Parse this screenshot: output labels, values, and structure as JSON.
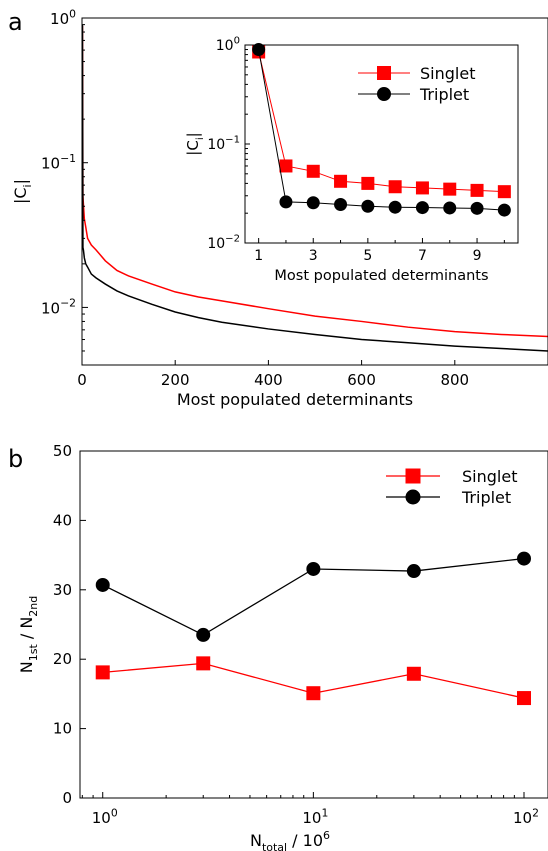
{
  "colors": {
    "singlet": "#ff0000",
    "triplet": "#000000"
  },
  "panels": {
    "a_label": "a",
    "b_label": "b"
  },
  "chart_data": [
    {
      "type": "line",
      "panel": "a",
      "xlabel": "Most populated determinants",
      "ylabel": "|C|",
      "ylabel_subscript": "i",
      "yscale": "log",
      "xlim": [
        0,
        1000
      ],
      "ylim": [
        0.004,
        1
      ],
      "xticks": [
        0,
        200,
        400,
        600,
        800
      ],
      "xtick_labels": [
        "0",
        "200",
        "400",
        "600",
        "800"
      ],
      "yticks": [
        1,
        0.1,
        0.01
      ],
      "ytick_labels": [
        {
          "base": "10",
          "exp": "0"
        },
        {
          "base": "10",
          "exp": "−1"
        },
        {
          "base": "10",
          "exp": "−2"
        }
      ],
      "series": [
        {
          "name": "Singlet",
          "color": "#ff0000",
          "x": [
            1,
            2,
            3,
            5,
            8,
            12,
            20,
            30,
            50,
            75,
            100,
            150,
            200,
            250,
            300,
            400,
            500,
            600,
            700,
            800,
            900,
            1000
          ],
          "y": [
            0.88,
            0.059,
            0.052,
            0.041,
            0.036,
            0.03,
            0.027,
            0.025,
            0.021,
            0.018,
            0.0165,
            0.0145,
            0.0128,
            0.0118,
            0.0111,
            0.0098,
            0.0087,
            0.008,
            0.0073,
            0.0068,
            0.0065,
            0.0063
          ]
        },
        {
          "name": "Triplet",
          "color": "#000000",
          "x": [
            1,
            2,
            3,
            5,
            8,
            12,
            20,
            30,
            50,
            75,
            100,
            150,
            200,
            250,
            300,
            400,
            500,
            600,
            700,
            800,
            900,
            1000
          ],
          "y": [
            0.9,
            0.026,
            0.025,
            0.022,
            0.02,
            0.019,
            0.017,
            0.016,
            0.0145,
            0.013,
            0.012,
            0.0105,
            0.0093,
            0.0085,
            0.0079,
            0.0071,
            0.0065,
            0.006,
            0.0057,
            0.0054,
            0.0052,
            0.005
          ]
        }
      ]
    },
    {
      "type": "line",
      "panel": "a-inset",
      "xlabel": "Most populated determinants",
      "ylabel": "|C|",
      "ylabel_subscript": "i",
      "yscale": "log",
      "xlim": [
        0.5,
        10.5
      ],
      "ylim": [
        0.01,
        1
      ],
      "xticks": [
        1,
        3,
        5,
        7,
        9
      ],
      "xtick_labels": [
        "1",
        "3",
        "5",
        "7",
        "9"
      ],
      "yticks": [
        1,
        0.1,
        0.01
      ],
      "ytick_labels": [
        {
          "base": "10",
          "exp": "0"
        },
        {
          "base": "10",
          "exp": "−1"
        },
        {
          "base": "10",
          "exp": "−2"
        }
      ],
      "legend": "top-right",
      "series": [
        {
          "name": "Singlet",
          "color": "#ff0000",
          "marker": "square",
          "x": [
            1,
            2,
            3,
            4,
            5,
            6,
            7,
            8,
            9,
            10
          ],
          "y": [
            0.85,
            0.06,
            0.053,
            0.042,
            0.04,
            0.037,
            0.036,
            0.035,
            0.034,
            0.033
          ]
        },
        {
          "name": "Triplet",
          "color": "#000000",
          "marker": "circle",
          "x": [
            1,
            2,
            3,
            4,
            5,
            6,
            7,
            8,
            9,
            10
          ],
          "y": [
            0.9,
            0.026,
            0.0255,
            0.0245,
            0.0235,
            0.023,
            0.0228,
            0.0226,
            0.0224,
            0.0215
          ]
        }
      ]
    },
    {
      "type": "line",
      "panel": "b",
      "xlabel": "N",
      "xlabel_subscript": "total",
      "xlabel_suffix": " / 10",
      "xlabel_superscript": "6",
      "ylabel": "N",
      "ylabel_sub1": "1st",
      "ylabel_mid": " / N",
      "ylabel_sub2": "2nd",
      "xscale": "log",
      "xlim": [
        0.78,
        130
      ],
      "ylim": [
        0,
        50
      ],
      "xticks": [
        1,
        10,
        100
      ],
      "xtick_labels": [
        {
          "base": "10",
          "exp": "0"
        },
        {
          "base": "10",
          "exp": "1"
        },
        {
          "base": "10",
          "exp": "2"
        }
      ],
      "yticks": [
        0,
        10,
        20,
        30,
        40,
        50
      ],
      "ytick_labels": [
        "0",
        "10",
        "20",
        "30",
        "40",
        "50"
      ],
      "legend": "top-right",
      "series": [
        {
          "name": "Singlet",
          "color": "#ff0000",
          "marker": "square",
          "x": [
            1,
            3,
            10,
            30,
            100
          ],
          "y": [
            18.1,
            19.4,
            15.1,
            17.9,
            14.4
          ]
        },
        {
          "name": "Triplet",
          "color": "#000000",
          "marker": "circle",
          "x": [
            1,
            3,
            10,
            30,
            100
          ],
          "y": [
            30.7,
            23.5,
            33.0,
            32.7,
            34.5
          ]
        }
      ]
    }
  ]
}
